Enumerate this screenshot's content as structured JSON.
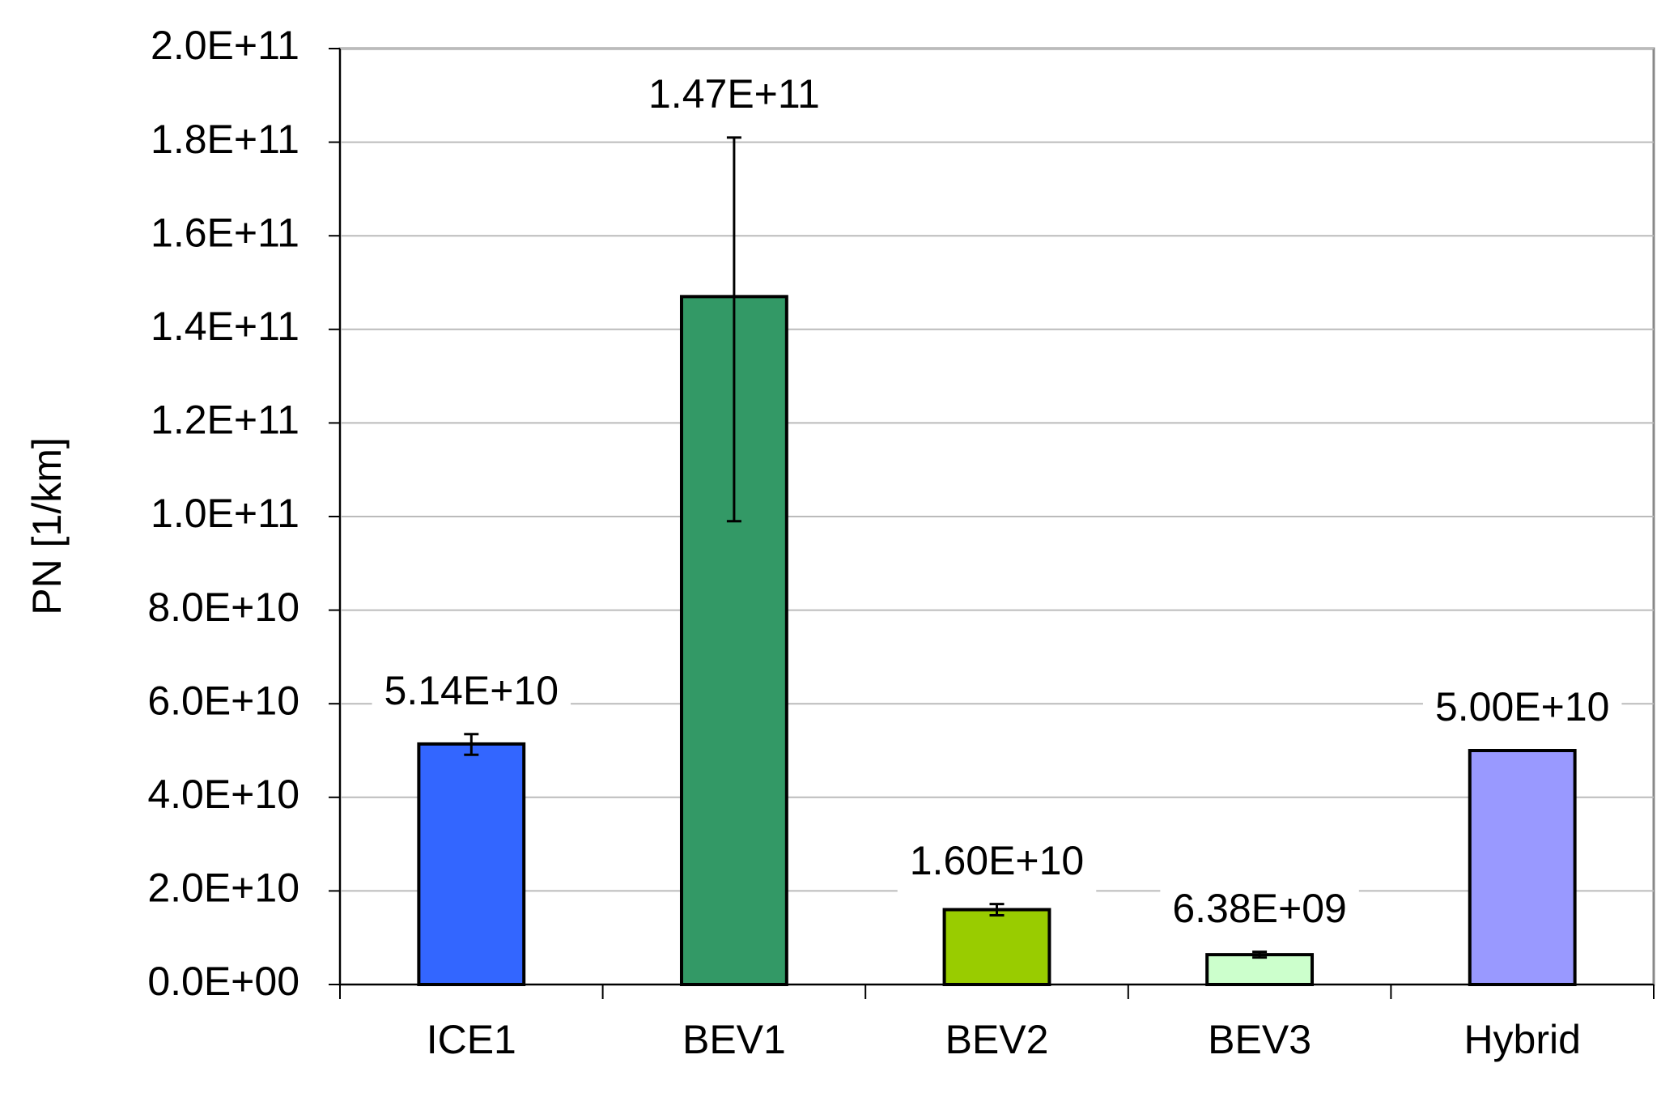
{
  "chart_data": {
    "type": "bar",
    "y_label": "PN [1/km]",
    "categories": [
      "ICE1",
      "BEV1",
      "BEV2",
      "BEV3",
      "Hybrid"
    ],
    "values": [
      51400000000,
      147000000000,
      16000000000,
      6380000000,
      50000000000
    ],
    "value_labels": [
      "5.14E+10",
      "1.47E+11",
      "1.60E+10",
      "6.38E+09",
      "5.00E+10"
    ],
    "error_plus": [
      2100000000,
      34000000000,
      1200000000,
      600000000,
      null
    ],
    "error_minus": [
      2300000000,
      48000000000,
      1200000000,
      600000000,
      null
    ],
    "colors": [
      "#3366ff",
      "#339966",
      "#99cc00",
      "#ccffcc",
      "#9999ff"
    ],
    "ylim": [
      0,
      200000000000
    ],
    "yticks": [
      {
        "value": 0,
        "label": "0.0E+00"
      },
      {
        "value": 20000000000,
        "label": "2.0E+10"
      },
      {
        "value": 40000000000,
        "label": "4.0E+10"
      },
      {
        "value": 60000000000,
        "label": "6.0E+10"
      },
      {
        "value": 80000000000,
        "label": "8.0E+10"
      },
      {
        "value": 100000000000,
        "label": "1.0E+11"
      },
      {
        "value": 120000000000,
        "label": "1.2E+11"
      },
      {
        "value": 140000000000,
        "label": "1.4E+11"
      },
      {
        "value": 160000000000,
        "label": "1.6E+11"
      },
      {
        "value": 180000000000,
        "label": "1.8E+11"
      },
      {
        "value": 200000000000,
        "label": "2.0E+11"
      }
    ],
    "grid": true
  }
}
